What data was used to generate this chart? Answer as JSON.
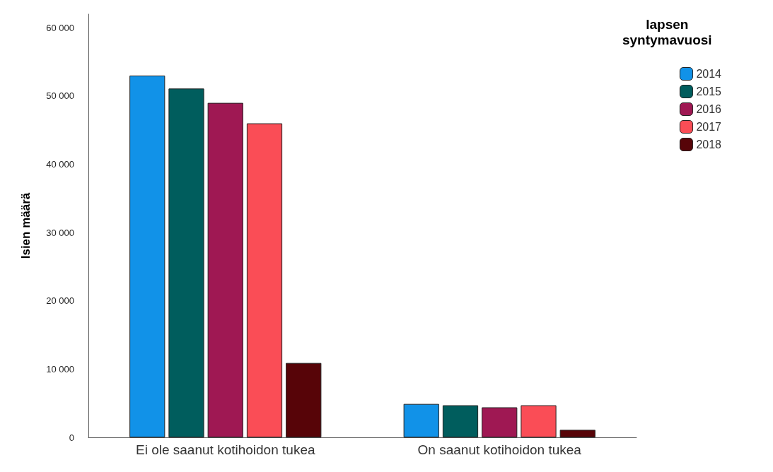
{
  "chart_data": {
    "type": "bar",
    "ylabel": "Isien määrä",
    "legend_title": "lapsen\nsyntymavuosi",
    "categories": [
      "Ei ole saanut kotihoidon tukea",
      "On saanut kotihoidon tukea"
    ],
    "series": [
      {
        "name": "2014",
        "color": "#1192e8",
        "values": [
          53000,
          4900
        ]
      },
      {
        "name": "2015",
        "color": "#005d5d",
        "values": [
          51100,
          4700
        ]
      },
      {
        "name": "2016",
        "color": "#9f1853",
        "values": [
          49000,
          4400
        ]
      },
      {
        "name": "2017",
        "color": "#fa4d56",
        "values": [
          46000,
          4700
        ]
      },
      {
        "name": "2018",
        "color": "#570408",
        "values": [
          10900,
          1100
        ]
      }
    ],
    "ylim": [
      0,
      62000
    ],
    "yticks": [
      {
        "value": 0,
        "label": "0"
      },
      {
        "value": 10000,
        "label": "10 000"
      },
      {
        "value": 20000,
        "label": "20 000"
      },
      {
        "value": 30000,
        "label": "30 000"
      },
      {
        "value": 40000,
        "label": "40 000"
      },
      {
        "value": 50000,
        "label": "50 000"
      },
      {
        "value": 60000,
        "label": "60 000"
      }
    ],
    "grid": false,
    "legend": "top right"
  }
}
